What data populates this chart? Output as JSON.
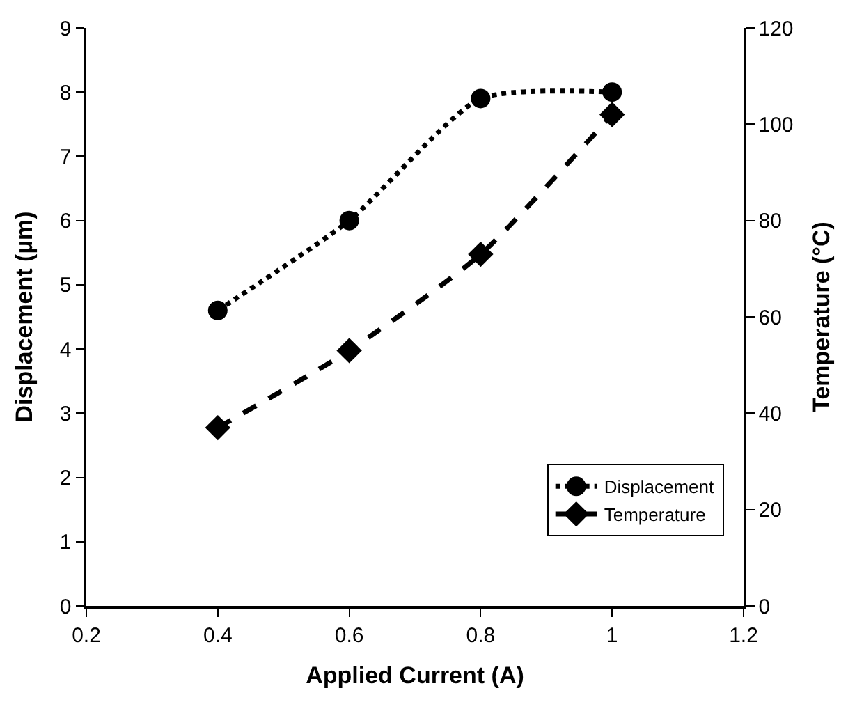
{
  "chart_data": {
    "type": "line",
    "xlabel": "Applied Current (A)",
    "ylabel": "Displacement (µm)",
    "y2label": "Temperature (°C)",
    "x": [
      0.4,
      0.6,
      0.8,
      1.0
    ],
    "series": [
      {
        "name": "Displacement",
        "color": "#000000",
        "values": [
          4.6,
          6.0,
          7.9,
          8.0
        ],
        "marker": "circle",
        "line_style": "dotted"
      },
      {
        "name": "Temperature",
        "color": "#000000",
        "values": [
          37,
          53,
          73,
          102
        ],
        "marker": "diamond",
        "line_style": "dashed",
        "axis": "y2"
      }
    ],
    "xlim": [
      0.2,
      1.2
    ],
    "xticks": [
      0.2,
      0.4,
      0.6,
      0.8,
      {
        "value": 1.0,
        "label": "1"
      },
      1.2
    ],
    "ylim": [
      0,
      9
    ],
    "yticks": [
      0,
      1,
      2,
      3,
      4,
      5,
      6,
      7,
      8,
      9
    ],
    "y2lim": [
      0,
      120
    ],
    "y2ticks": [
      0,
      20,
      40,
      60,
      80,
      100,
      120
    ],
    "legend": "bottom right"
  }
}
